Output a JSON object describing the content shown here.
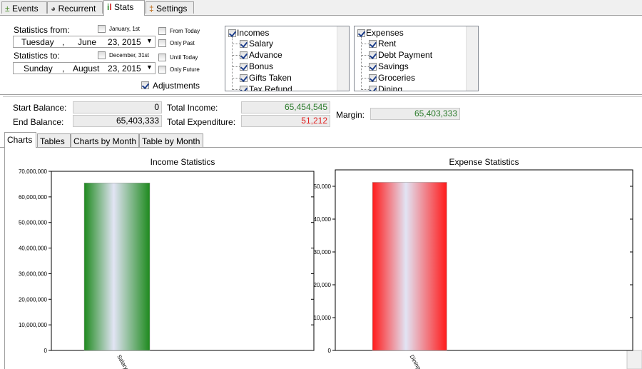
{
  "tabs": [
    "Events",
    "Recurrent",
    "Stats",
    "Settings"
  ],
  "filters": {
    "from_label": "Statistics from:",
    "from_date": {
      "weekday": "Tuesday",
      "separator": ",",
      "month": "June",
      "day_year": "23, 2015"
    },
    "to_label": "Statistics to:",
    "to_date": {
      "weekday": "Sunday",
      "separator": ",",
      "month": "August",
      "day_year": "23, 2015"
    },
    "options": [
      {
        "label": "January, 1st",
        "checked": false
      },
      {
        "label": "From Today",
        "checked": false
      },
      {
        "label": "Only Past",
        "checked": false
      },
      {
        "label": "December, 31st",
        "checked": false
      },
      {
        "label": "Until Today",
        "checked": false
      },
      {
        "label": "Only Future",
        "checked": false
      }
    ],
    "adjustments": {
      "label": "Adjustments",
      "checked": true
    }
  },
  "incomes": {
    "header": {
      "label": "Incomes",
      "checked": true
    },
    "items": [
      {
        "label": "Salary",
        "checked": true
      },
      {
        "label": "Advance",
        "checked": true
      },
      {
        "label": "Bonus",
        "checked": true
      },
      {
        "label": "Gifts Taken",
        "checked": true
      },
      {
        "label": "Tax Refund",
        "checked": true
      }
    ]
  },
  "expenses": {
    "header": {
      "label": "Expenses",
      "checked": true
    },
    "items": [
      {
        "label": "Rent",
        "checked": true
      },
      {
        "label": "Debt Payment",
        "checked": true
      },
      {
        "label": "Savings",
        "checked": true
      },
      {
        "label": "Groceries",
        "checked": true
      },
      {
        "label": "Dining",
        "checked": true
      }
    ]
  },
  "summary": {
    "start_balance": {
      "label": "Start Balance:",
      "value": "0"
    },
    "end_balance": {
      "label": "End Balance:",
      "value": "65,403,333"
    },
    "total_income": {
      "label": "Total Income:",
      "value": "65,454,545"
    },
    "total_expenditure": {
      "label": "Total Expenditure:",
      "value": "51,212"
    },
    "margin": {
      "label": "Margin:",
      "value": "65,403,333"
    }
  },
  "subtabs": [
    "Charts",
    "Tables",
    "Charts by Month",
    "Table by Month"
  ],
  "chart_data": [
    {
      "type": "bar",
      "title": "Income Statistics",
      "categories": [
        "Salary"
      ],
      "values": [
        65454545
      ],
      "color": "#1e8a1e",
      "ylim": [
        0,
        70000000
      ],
      "yticks": [
        0,
        {
          "value": 10000000,
          "label": "10,000,000"
        },
        {
          "value": 20000000,
          "label": "20,000,000"
        },
        {
          "value": 30000000,
          "label": "30,000,000"
        },
        {
          "value": 40000000,
          "label": "40,000,000"
        },
        {
          "value": 50000000,
          "label": "50,000,000"
        },
        {
          "value": 60000000,
          "label": "60,000,000"
        },
        {
          "value": 70000000,
          "label": "70,000,000"
        }
      ]
    },
    {
      "type": "bar",
      "title": "Expense Statistics",
      "categories": [
        "Dining"
      ],
      "values": [
        51212
      ],
      "color": "#ff1a1a",
      "ylim": [
        0,
        55000
      ],
      "yticks": [
        0,
        {
          "value": 10000,
          "label": "10,000"
        },
        {
          "value": 20000,
          "label": "20,000"
        },
        {
          "value": 30000,
          "label": "30,000"
        },
        {
          "value": 40000,
          "label": "40,000"
        },
        {
          "value": 50000,
          "label": "50,000"
        }
      ]
    }
  ]
}
